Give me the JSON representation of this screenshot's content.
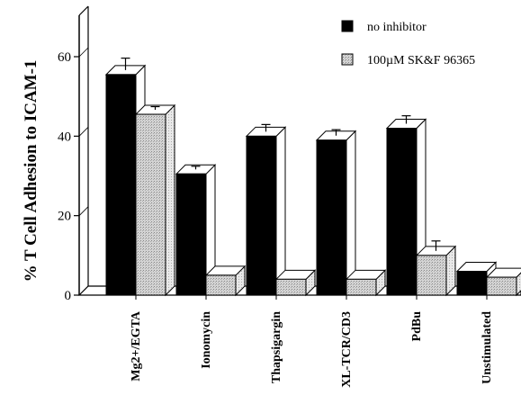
{
  "chart_data": {
    "type": "bar",
    "title": "",
    "xlabel": "",
    "ylabel": "% T Cell Adhesion to ICAM-1",
    "ylim": [
      0,
      70
    ],
    "yticks": [
      0,
      20,
      40,
      60
    ],
    "grid": false,
    "legend_position": "top-right",
    "style": "3d",
    "categories": [
      "Mg2+/EGTA",
      "Ionomycin",
      "Thapsigargin",
      "XL-TCR/CD3",
      "PdBu",
      "Unstimulated"
    ],
    "series": [
      {
        "name": "no inhibitor",
        "color": "#000000",
        "values": [
          55.5,
          30.5,
          40,
          39,
          42,
          6
        ],
        "errors": [
          3,
          0.8,
          1.8,
          1.5,
          2,
          0
        ]
      },
      {
        "name": "100µM SK&F 96365",
        "color": "#c8c8c8",
        "values": [
          45.5,
          5,
          4,
          4,
          10,
          4.5
        ],
        "errors": [
          0.8,
          0,
          0,
          0,
          2.5,
          0
        ]
      }
    ]
  }
}
